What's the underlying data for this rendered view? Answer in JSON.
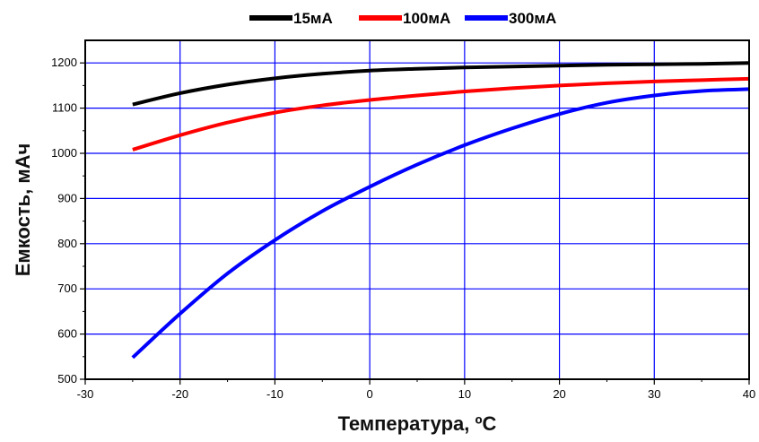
{
  "chart_data": {
    "type": "line",
    "title": "",
    "xlabel": "Температура, ºС",
    "ylabel": "Емкость, мАч",
    "xlim": [
      -30,
      40
    ],
    "ylim": [
      500,
      1250
    ],
    "x_ticks": [
      -30,
      -20,
      -10,
      0,
      10,
      20,
      30,
      40
    ],
    "y_ticks": [
      500,
      600,
      700,
      800,
      900,
      1000,
      1100,
      1200
    ],
    "x_tick_labels": [
      "-30",
      "-20",
      "-10",
      "0",
      "10",
      "20",
      "30",
      "40"
    ],
    "y_tick_labels": [
      "500",
      "600",
      "700",
      "800",
      "900",
      "1000",
      "1100",
      "1200"
    ],
    "grid": true,
    "grid_color": "#0000ff",
    "legend_position": "top-center",
    "series": [
      {
        "name": "15мА",
        "color": "#000000",
        "x": [
          -25,
          -20,
          -15,
          -10,
          -5,
          0,
          5,
          10,
          15,
          20,
          25,
          30,
          35,
          40
        ],
        "y": [
          1108,
          1133,
          1152,
          1166,
          1176,
          1183,
          1187,
          1190,
          1192,
          1194,
          1196,
          1197,
          1198,
          1200
        ]
      },
      {
        "name": "100мА",
        "color": "#ff0000",
        "x": [
          -25,
          -20,
          -15,
          -10,
          -5,
          0,
          5,
          10,
          15,
          20,
          25,
          30,
          35,
          40
        ],
        "y": [
          1008,
          1040,
          1068,
          1090,
          1106,
          1118,
          1128,
          1137,
          1144,
          1150,
          1155,
          1159,
          1162,
          1165
        ]
      },
      {
        "name": "300мА",
        "color": "#0000ff",
        "x": [
          -25,
          -20,
          -15,
          -10,
          -5,
          0,
          5,
          10,
          15,
          20,
          25,
          30,
          35,
          40
        ],
        "y": [
          548,
          645,
          734,
          808,
          872,
          926,
          975,
          1018,
          1055,
          1087,
          1112,
          1128,
          1138,
          1142
        ]
      }
    ]
  }
}
